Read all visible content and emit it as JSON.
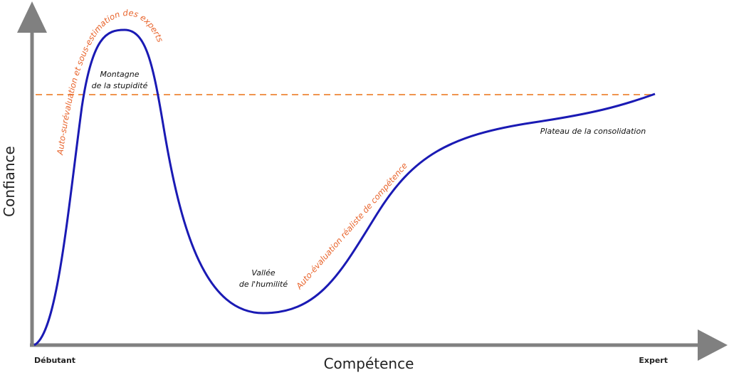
{
  "axes": {
    "y_label": "Confiance",
    "x_label": "Compétence",
    "x_start": "Débutant",
    "x_end": "Expert"
  },
  "annotations": {
    "peak": [
      "Montagne",
      "de la stupidité"
    ],
    "valley": [
      "Vallée",
      "de l'humilité"
    ],
    "plateau": "Plateau de la consolidation",
    "overestimation": "Auto-surévaluation et sous-estimation des experts",
    "realistic": "Auto-évaluation réaliste de compétence"
  }
}
